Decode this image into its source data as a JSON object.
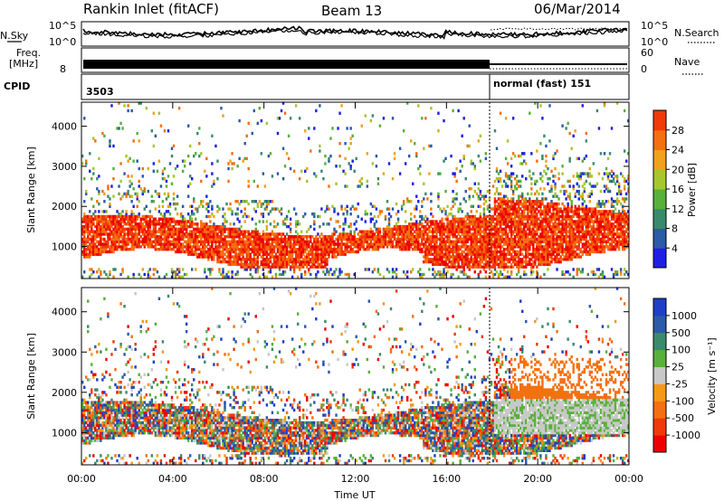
{
  "header": {
    "station": "Rankin Inlet (fitACF)",
    "beam": "Beam 13",
    "date": "06/Mar/2014"
  },
  "panels": {
    "nsky_label": "N.Sky",
    "nsearch_label": "N.Search",
    "nsky_ticks": [
      "10^5",
      "10^0"
    ],
    "nsearch_ticks": [
      "10^5",
      "10^0"
    ],
    "freq_label": "Freq.",
    "freq_unit": "[MHz]",
    "freq_tick": "8",
    "nave_label": "Nave",
    "nave_ticks": [
      "60",
      "0"
    ],
    "cpid_label": "CPID",
    "cpid_first": "3503",
    "cpid_second": "normal (fast) 151"
  },
  "colors": {
    "power_scale": [
      "#1f1fe6",
      "#2b5aa8",
      "#3a8b6b",
      "#58b13a",
      "#a6c72c",
      "#f0a21b",
      "#f57010",
      "#f03a08",
      "#ee0000"
    ],
    "velocity_scale": [
      "#ee0000",
      "#f03a08",
      "#f57010",
      "#f59a18",
      "#c8c8c8",
      "#58b13a",
      "#3a8b6b",
      "#2b5aa8",
      "#1f3fc8"
    ]
  },
  "chart_data": [
    {
      "type": "heatmap",
      "name": "power",
      "ylabel": "Slant Range [km]",
      "ylim": [
        200,
        4600
      ],
      "yticks": [
        "1000",
        "2000",
        "3000",
        "4000"
      ],
      "colorbar_label": "Power [dB]",
      "colorbar_ticks": [
        "4",
        "8",
        "12",
        "16",
        "20",
        "24",
        "28"
      ]
    },
    {
      "type": "heatmap",
      "name": "velocity",
      "ylabel": "Slant Range [km]",
      "ylim": [
        200,
        4600
      ],
      "yticks": [
        "1000",
        "2000",
        "3000",
        "4000"
      ],
      "colorbar_label": "Velocity [m s⁻¹]",
      "colorbar_ticks": [
        "-1000",
        "-500",
        "-100",
        "-25",
        "25",
        "100",
        "500",
        "1000"
      ]
    }
  ],
  "time_axis": {
    "label": "Time UT",
    "ticks": [
      "00:00",
      "04:00",
      "08:00",
      "12:00",
      "16:00",
      "20:00",
      "00:00"
    ]
  }
}
